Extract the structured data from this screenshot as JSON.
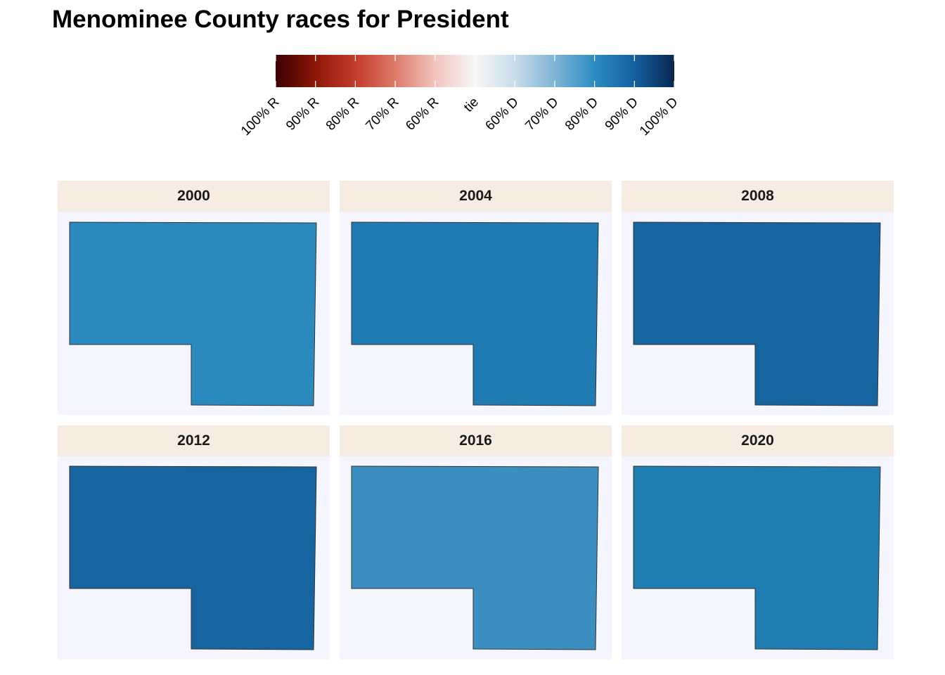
{
  "title": "Menominee County races for President",
  "legend": {
    "labels": [
      "100% R",
      "90% R",
      "80% R",
      "70% R",
      "60% R",
      "tie",
      "60% D",
      "70% D",
      "80% D",
      "90% D",
      "100% D"
    ],
    "gradient_colors": [
      "#3a0000",
      "#8e1708",
      "#c43c2c",
      "#dd7a6a",
      "#f2c4bd",
      "#f7f7f7",
      "#c8dcea",
      "#7fb4d5",
      "#2c8cc2",
      "#15609f",
      "#07274f"
    ]
  },
  "panels": [
    {
      "year": "2000",
      "fill": "#2b8abd"
    },
    {
      "year": "2004",
      "fill": "#1f7bb2"
    },
    {
      "year": "2008",
      "fill": "#1665a1"
    },
    {
      "year": "2012",
      "fill": "#1665a1"
    },
    {
      "year": "2016",
      "fill": "#3a8fc0"
    },
    {
      "year": "2020",
      "fill": "#1f7db2"
    }
  ]
}
